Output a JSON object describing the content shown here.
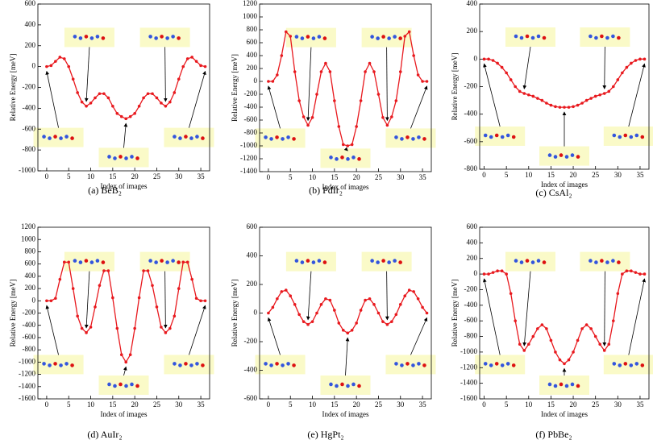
{
  "chart_data": [
    {
      "type": "line",
      "caption": "(a) BeB₂",
      "x_label": "Index of images",
      "y_label": "Relative Energy [meV]",
      "color": "#e8191e",
      "x": [
        0,
        1,
        2,
        3,
        4,
        5,
        6,
        7,
        8,
        9,
        10,
        11,
        12,
        13,
        14,
        15,
        16,
        17,
        18,
        19,
        20,
        21,
        22,
        23,
        24,
        25,
        26,
        27,
        28,
        29,
        30,
        31,
        32,
        33,
        34,
        35,
        36
      ],
      "values": [
        0,
        10,
        50,
        90,
        75,
        0,
        -120,
        -250,
        -340,
        -380,
        -350,
        -300,
        -260,
        -260,
        -300,
        -380,
        -450,
        -480,
        -500,
        -480,
        -450,
        -380,
        -300,
        -260,
        -260,
        -300,
        -350,
        -380,
        -340,
        -250,
        -120,
        0,
        75,
        90,
        50,
        10,
        0
      ],
      "xlim": [
        -2,
        37
      ],
      "xticks": [
        0,
        5,
        10,
        15,
        20,
        25,
        30,
        35
      ],
      "ylim": [
        -1000,
        600
      ],
      "yticks": [
        -1000,
        -800,
        -600,
        -400,
        -200,
        0,
        200,
        400,
        600
      ]
    },
    {
      "type": "line",
      "caption": "(b) PdIr₂",
      "x_label": "Index of images",
      "y_label": "Relative Energy [meV]",
      "color": "#e8191e",
      "x": [
        0,
        1,
        2,
        3,
        4,
        5,
        6,
        7,
        8,
        9,
        10,
        11,
        12,
        13,
        14,
        15,
        16,
        17,
        18,
        19,
        20,
        21,
        22,
        23,
        24,
        25,
        26,
        27,
        28,
        29,
        30,
        31,
        32,
        33,
        34,
        35,
        36
      ],
      "values": [
        0,
        0,
        100,
        400,
        770,
        700,
        150,
        -300,
        -550,
        -680,
        -560,
        -200,
        150,
        280,
        150,
        -300,
        -700,
        -980,
        -1000,
        -980,
        -700,
        -300,
        150,
        280,
        150,
        -200,
        -560,
        -680,
        -550,
        -300,
        150,
        700,
        770,
        400,
        100,
        0,
        0
      ],
      "xlim": [
        -2,
        37
      ],
      "xticks": [
        0,
        5,
        10,
        15,
        20,
        25,
        30,
        35
      ],
      "ylim": [
        -1400,
        1200
      ],
      "yticks": [
        -1400,
        -1200,
        -1000,
        -800,
        -600,
        -400,
        -200,
        0,
        200,
        400,
        600,
        800,
        1000,
        1200
      ]
    },
    {
      "type": "line",
      "caption": "(c) CsAl₂",
      "x_label": "Index of images",
      "y_label": "Relative Energy [meV]",
      "color": "#e8191e",
      "x": [
        0,
        1,
        2,
        3,
        4,
        5,
        6,
        7,
        8,
        9,
        10,
        11,
        12,
        13,
        14,
        15,
        16,
        17,
        18,
        19,
        20,
        21,
        22,
        23,
        24,
        25,
        26,
        27,
        28,
        29,
        30,
        31,
        32,
        33,
        34,
        35,
        36
      ],
      "values": [
        0,
        0,
        -10,
        -30,
        -60,
        -100,
        -150,
        -200,
        -235,
        -250,
        -260,
        -270,
        -285,
        -300,
        -320,
        -335,
        -345,
        -350,
        -350,
        -350,
        -345,
        -335,
        -320,
        -300,
        -285,
        -270,
        -260,
        -250,
        -235,
        -200,
        -150,
        -100,
        -60,
        -30,
        -10,
        0,
        0
      ],
      "xlim": [
        -1,
        37
      ],
      "xticks": [
        0,
        5,
        10,
        15,
        20,
        25,
        30,
        35
      ],
      "ylim": [
        -800,
        400
      ],
      "yticks": [
        -800,
        -600,
        -400,
        -200,
        0,
        200,
        400
      ]
    },
    {
      "type": "line",
      "caption": "(d) AuIr₂",
      "x_label": "Index of images",
      "y_label": "Relative Energy [meV]",
      "color": "#e8191e",
      "x": [
        0,
        1,
        2,
        3,
        4,
        5,
        6,
        7,
        8,
        9,
        10,
        11,
        12,
        13,
        14,
        15,
        16,
        17,
        18,
        19,
        20,
        21,
        22,
        23,
        24,
        25,
        26,
        27,
        28,
        29,
        30,
        31,
        32,
        33,
        34,
        35,
        36
      ],
      "values": [
        0,
        0,
        40,
        350,
        630,
        630,
        200,
        -250,
        -450,
        -520,
        -430,
        -100,
        250,
        490,
        490,
        50,
        -450,
        -880,
        -1000,
        -880,
        -450,
        50,
        490,
        490,
        250,
        -100,
        -430,
        -520,
        -450,
        -250,
        200,
        630,
        630,
        350,
        40,
        0,
        0
      ],
      "xlim": [
        -2,
        37
      ],
      "xticks": [
        0,
        5,
        10,
        15,
        20,
        25,
        30,
        35
      ],
      "ylim": [
        -1600,
        1200
      ],
      "yticks": [
        -1600,
        -1400,
        -1200,
        -1000,
        -800,
        -600,
        -400,
        -200,
        0,
        200,
        400,
        600,
        800,
        1000,
        1200
      ]
    },
    {
      "type": "line",
      "caption": "(e) HgPt₂",
      "x_label": "Index of images",
      "y_label": "Relative Energy [meV]",
      "color": "#e8191e",
      "x": [
        0,
        1,
        2,
        3,
        4,
        5,
        6,
        7,
        8,
        9,
        10,
        11,
        12,
        13,
        14,
        15,
        16,
        17,
        18,
        19,
        20,
        21,
        22,
        23,
        24,
        25,
        26,
        27,
        28,
        29,
        30,
        31,
        32,
        33,
        34,
        35,
        36
      ],
      "values": [
        0,
        40,
        100,
        150,
        160,
        120,
        60,
        -10,
        -60,
        -80,
        -60,
        0,
        60,
        100,
        90,
        20,
        -70,
        -120,
        -140,
        -120,
        -70,
        20,
        90,
        100,
        60,
        0,
        -60,
        -80,
        -60,
        -10,
        60,
        120,
        160,
        150,
        100,
        40,
        0
      ],
      "xlim": [
        -2,
        37
      ],
      "xticks": [
        0,
        5,
        10,
        15,
        20,
        25,
        30,
        35
      ],
      "ylim": [
        -600,
        600
      ],
      "yticks": [
        -600,
        -400,
        -200,
        0,
        200,
        400,
        600
      ]
    },
    {
      "type": "line",
      "caption": "(f) PbBe₂",
      "x_label": "Index of images",
      "y_label": "Relative Energy [meV]",
      "color": "#e8191e",
      "x": [
        0,
        1,
        2,
        3,
        4,
        5,
        6,
        7,
        8,
        9,
        10,
        11,
        12,
        13,
        14,
        15,
        16,
        17,
        18,
        19,
        20,
        21,
        22,
        23,
        24,
        25,
        26,
        27,
        28,
        29,
        30,
        31,
        32,
        33,
        34,
        35,
        36
      ],
      "values": [
        0,
        0,
        20,
        40,
        40,
        0,
        -250,
        -600,
        -900,
        -980,
        -900,
        -800,
        -700,
        -650,
        -700,
        -850,
        -1000,
        -1100,
        -1150,
        -1100,
        -1000,
        -850,
        -700,
        -650,
        -700,
        -800,
        -900,
        -980,
        -900,
        -600,
        -250,
        0,
        40,
        40,
        20,
        0,
        0
      ],
      "xlim": [
        -1,
        37
      ],
      "xticks": [
        0,
        5,
        10,
        15,
        20,
        25,
        30,
        35
      ],
      "ylim": [
        -1600,
        600
      ],
      "yticks": [
        -1600,
        -1400,
        -1200,
        -1000,
        -800,
        -600,
        -400,
        -200,
        0,
        200,
        400,
        600
      ]
    }
  ]
}
